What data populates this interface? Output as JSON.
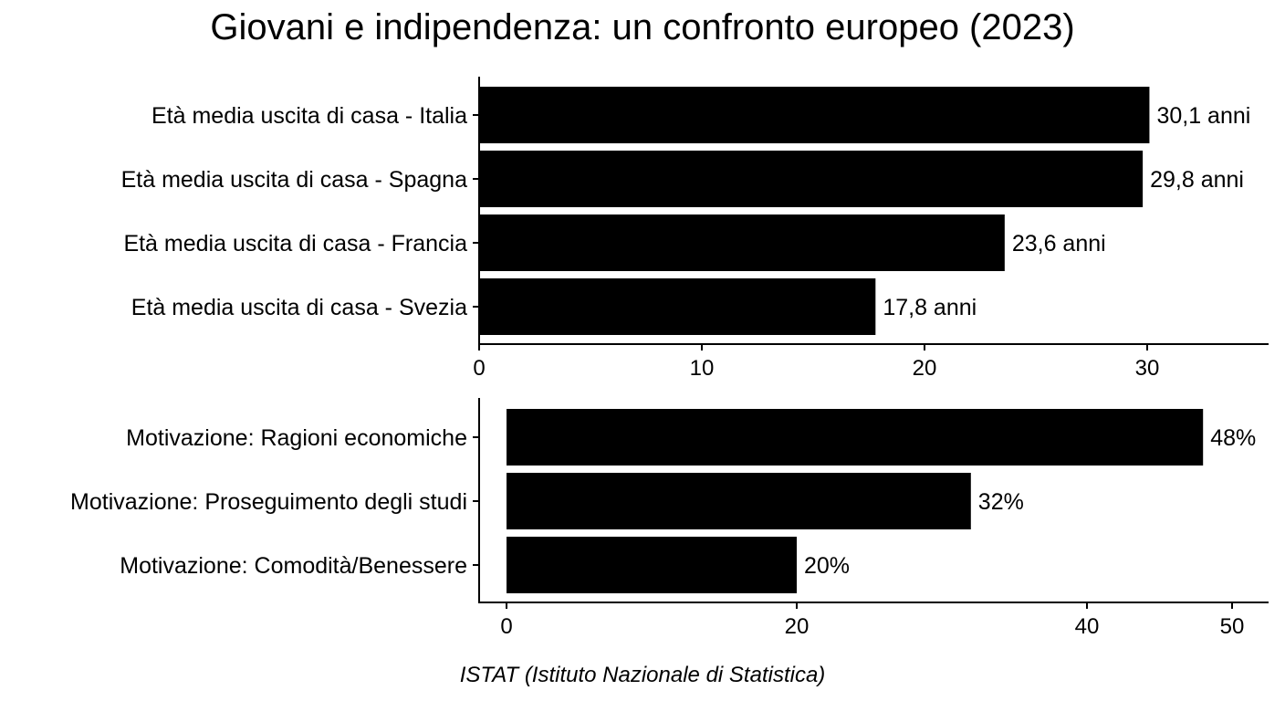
{
  "title": "Giovani e indipendenza: un confronto europeo (2023)",
  "caption": "ISTAT (Istituto Nazionale di Statistica)",
  "chart_data": [
    {
      "type": "bar",
      "orientation": "horizontal",
      "categories": [
        "Età media uscita di casa - Italia",
        "Età media uscita di casa - Spagna",
        "Età media uscita di casa - Francia",
        "Età media uscita di casa - Svezia"
      ],
      "values": [
        30.1,
        29.8,
        23.6,
        17.8
      ],
      "data_labels": [
        "30,1 anni",
        "29,8 anni",
        "23,6 anni",
        "17,8 anni"
      ],
      "xlim": [
        0,
        35
      ],
      "ticks": [
        0,
        10,
        20,
        30
      ],
      "grid": false,
      "bar_color": "#000000"
    },
    {
      "type": "bar",
      "orientation": "horizontal",
      "categories": [
        "Motivazione: Ragioni economiche",
        "Motivazione: Proseguimento degli studi",
        "Motivazione: Comodità/Benessere"
      ],
      "values": [
        48,
        32,
        20
      ],
      "data_labels": [
        "48%",
        "32%",
        "20%"
      ],
      "xlim": [
        -1.9,
        52.6
      ],
      "ticks": [
        0,
        20,
        40,
        50
      ],
      "grid": false,
      "bar_color": "#000000"
    }
  ]
}
